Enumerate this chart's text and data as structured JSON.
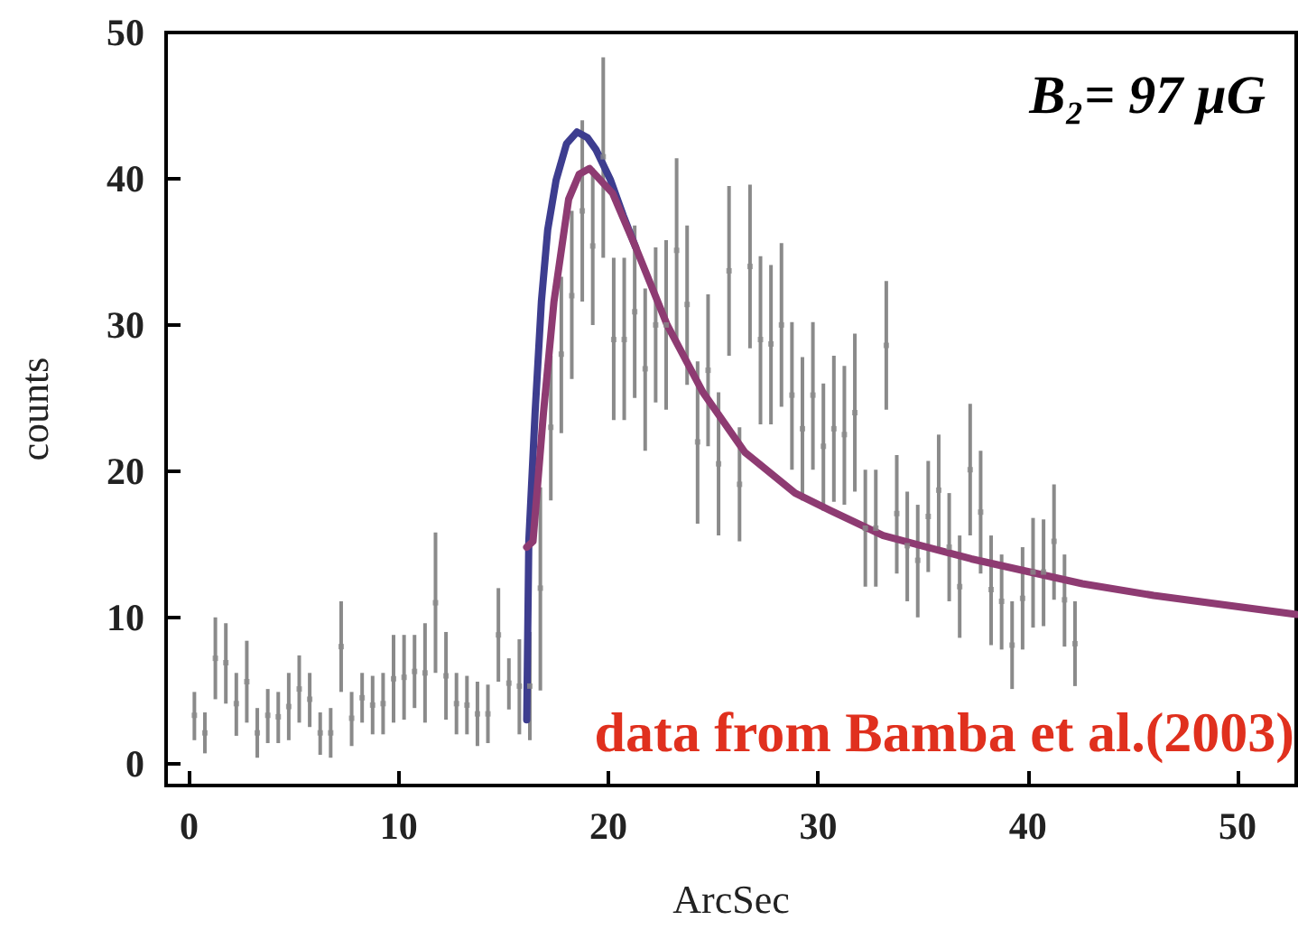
{
  "chart_data": {
    "type": "scatter",
    "xlabel": "ArcSec",
    "ylabel": "counts",
    "xlim": [
      -1.1,
      52.8
    ],
    "ylim": [
      -1.5,
      50
    ],
    "xticks": [
      0,
      10,
      20,
      30,
      40,
      50
    ],
    "yticks": [
      0,
      10,
      20,
      30,
      40,
      50
    ],
    "grid": false,
    "line_style": "solid",
    "annotations": [
      "B₂= 97 μG",
      "data from Bamba et al.(2003)"
    ],
    "series": [
      {
        "color": "#8a8a8a",
        "marker": "square",
        "x": [
          0.25,
          0.75,
          1.25,
          1.75,
          2.25,
          2.75,
          3.25,
          3.75,
          4.25,
          4.75,
          5.25,
          5.75,
          6.25,
          6.75,
          7.25,
          7.75,
          8.25,
          8.75,
          9.25,
          9.75,
          10.25,
          10.75,
          11.25,
          11.75,
          12.25,
          12.75,
          13.25,
          13.75,
          14.25,
          14.75,
          15.25,
          15.75,
          16.25,
          16.75,
          17.25,
          17.75,
          18.25,
          18.75,
          19.25,
          19.75,
          20.25,
          20.75,
          21.25,
          21.75,
          22.25,
          22.75,
          23.25,
          23.75,
          24.25,
          24.75,
          25.25,
          25.75,
          26.25,
          26.75,
          27.25,
          27.75,
          28.25,
          28.75,
          29.25,
          29.75,
          30.25,
          30.75,
          31.25,
          31.75,
          32.25,
          32.75,
          33.25,
          33.75,
          34.25,
          34.75,
          35.25,
          35.75,
          36.25,
          36.75,
          37.25,
          37.75,
          38.25,
          38.75,
          39.25,
          39.75,
          40.25,
          40.75,
          41.25,
          41.75,
          42.25
        ],
        "values": [
          3.3,
          2.1,
          7.2,
          6.9,
          4.1,
          5.6,
          2.1,
          3.3,
          3.2,
          3.9,
          5.1,
          4.4,
          2.1,
          2.1,
          8.0,
          3.1,
          4.5,
          4,
          4.1,
          5.8,
          5.9,
          6.3,
          6.2,
          11,
          6,
          4.1,
          4,
          3.4,
          3.4,
          8.8,
          5.5,
          5.3,
          5.3,
          12,
          23,
          28,
          32,
          37.8,
          35.4,
          41.5,
          29,
          29,
          30.9,
          27,
          30,
          30,
          35.1,
          31.4,
          22,
          26.9,
          20.5,
          33.7,
          19.1,
          34,
          29,
          28.7,
          30,
          25.2,
          22.9,
          25.2,
          21.7,
          22.9,
          22.5,
          24,
          16.1,
          16.1,
          28.6,
          17.1,
          14.9,
          13.9,
          16.9,
          18.7,
          14.8,
          12.1,
          20.1,
          17.2,
          11.9,
          11.1,
          8.1,
          11.3,
          13.1,
          13.1,
          15.2,
          11.2,
          8.2
        ],
        "errors": [
          [
            1.6,
            4.9
          ],
          [
            0.7,
            3.5
          ],
          [
            4.4,
            10
          ],
          [
            4.1,
            9.6
          ],
          [
            1.9,
            6.2
          ],
          [
            2.8,
            8.4
          ],
          [
            0.4,
            3.8
          ],
          [
            1.4,
            5.1
          ],
          [
            1.4,
            4.9
          ],
          [
            1.6,
            6.2
          ],
          [
            2.8,
            7.4
          ],
          [
            2.5,
            6.2
          ],
          [
            0.6,
            3.5
          ],
          [
            0.4,
            3.8
          ],
          [
            4.9,
            11.1
          ],
          [
            1.2,
            4.9
          ],
          [
            2.8,
            6.2
          ],
          [
            2,
            6
          ],
          [
            2,
            6.2
          ],
          [
            2.8,
            8.8
          ],
          [
            3,
            8.8
          ],
          [
            3.8,
            8.8
          ],
          [
            2.8,
            9.6
          ],
          [
            6.2,
            15.8
          ],
          [
            3,
            9
          ],
          [
            2,
            6.2
          ],
          [
            2,
            6
          ],
          [
            1.2,
            5.6
          ],
          [
            1.4,
            5.4
          ],
          [
            5.6,
            12
          ],
          [
            3.7,
            7.2
          ],
          [
            2,
            8.5
          ],
          [
            1.6,
            9
          ],
          [
            5,
            18.9
          ],
          [
            18,
            27.9
          ],
          [
            22.6,
            33.3
          ],
          [
            26.3,
            37.8
          ],
          [
            31.6,
            44
          ],
          [
            30,
            40.7
          ],
          [
            34.6,
            48.3
          ],
          [
            23.5,
            34.6
          ],
          [
            23.5,
            34.6
          ],
          [
            25,
            36.8
          ],
          [
            21.4,
            32.5
          ],
          [
            24.7,
            35.3
          ],
          [
            24.2,
            35.8
          ],
          [
            28.8,
            41.4
          ],
          [
            25.9,
            36.8
          ],
          [
            16.4,
            27.5
          ],
          [
            21.7,
            32.1
          ],
          [
            15.6,
            25.4
          ],
          [
            27.9,
            39.5
          ],
          [
            15.2,
            23
          ],
          [
            28.4,
            39.6
          ],
          [
            23.2,
            34.7
          ],
          [
            23.2,
            34.1
          ],
          [
            24.4,
            35.6
          ],
          [
            20.1,
            30.2
          ],
          [
            18,
            27.8
          ],
          [
            20.1,
            30.2
          ],
          [
            17.3,
            26
          ],
          [
            17.9,
            27.9
          ],
          [
            17.7,
            27.2
          ],
          [
            18.6,
            29.4
          ],
          [
            12.1,
            20.1
          ],
          [
            12.1,
            20.1
          ],
          [
            24.2,
            33
          ],
          [
            13,
            21.1
          ],
          [
            11.1,
            18.6
          ],
          [
            10,
            17.7
          ],
          [
            13.1,
            20.7
          ],
          [
            14.8,
            22.5
          ],
          [
            11.1,
            18.5
          ],
          [
            8.6,
            15.6
          ],
          [
            15.6,
            24.6
          ],
          [
            13,
            21.4
          ],
          [
            8.1,
            15.6
          ],
          [
            7.8,
            14.3
          ],
          [
            5.1,
            11.1
          ],
          [
            7.8,
            14.8
          ],
          [
            9.3,
            16.8
          ],
          [
            9.4,
            16.7
          ],
          [
            11.2,
            19.1
          ],
          [
            8,
            14.3
          ],
          [
            5.3,
            11.1
          ]
        ]
      },
      {
        "type": "line",
        "color": "#3d3d8f",
        "marker": "none",
        "x": [
          16.1,
          16.2,
          16.5,
          16.8,
          17.1,
          17.5,
          18,
          18.5,
          19,
          19.4,
          20.1,
          20.7,
          21.3
        ],
        "values": [
          3,
          15.2,
          24,
          31.6,
          36.5,
          39.9,
          42.4,
          43.2,
          42.8,
          42,
          39.9,
          37.5,
          35.3
        ]
      },
      {
        "type": "line",
        "color": "#8e3b72",
        "marker": "none",
        "x": [
          16.1,
          16.4,
          16.9,
          17.4,
          18.1,
          18.6,
          19.1,
          20.2,
          21.3,
          22.8,
          24.5,
          26.5,
          28.9,
          30.6,
          33.1,
          37.3,
          42.6,
          46,
          52.8
        ],
        "values": [
          14.8,
          15.2,
          24,
          31.6,
          38.6,
          40.3,
          40.7,
          39,
          35.3,
          30,
          25.4,
          21.3,
          18.5,
          17.3,
          15.6,
          14,
          12.3,
          11.5,
          10.2
        ]
      }
    ]
  }
}
